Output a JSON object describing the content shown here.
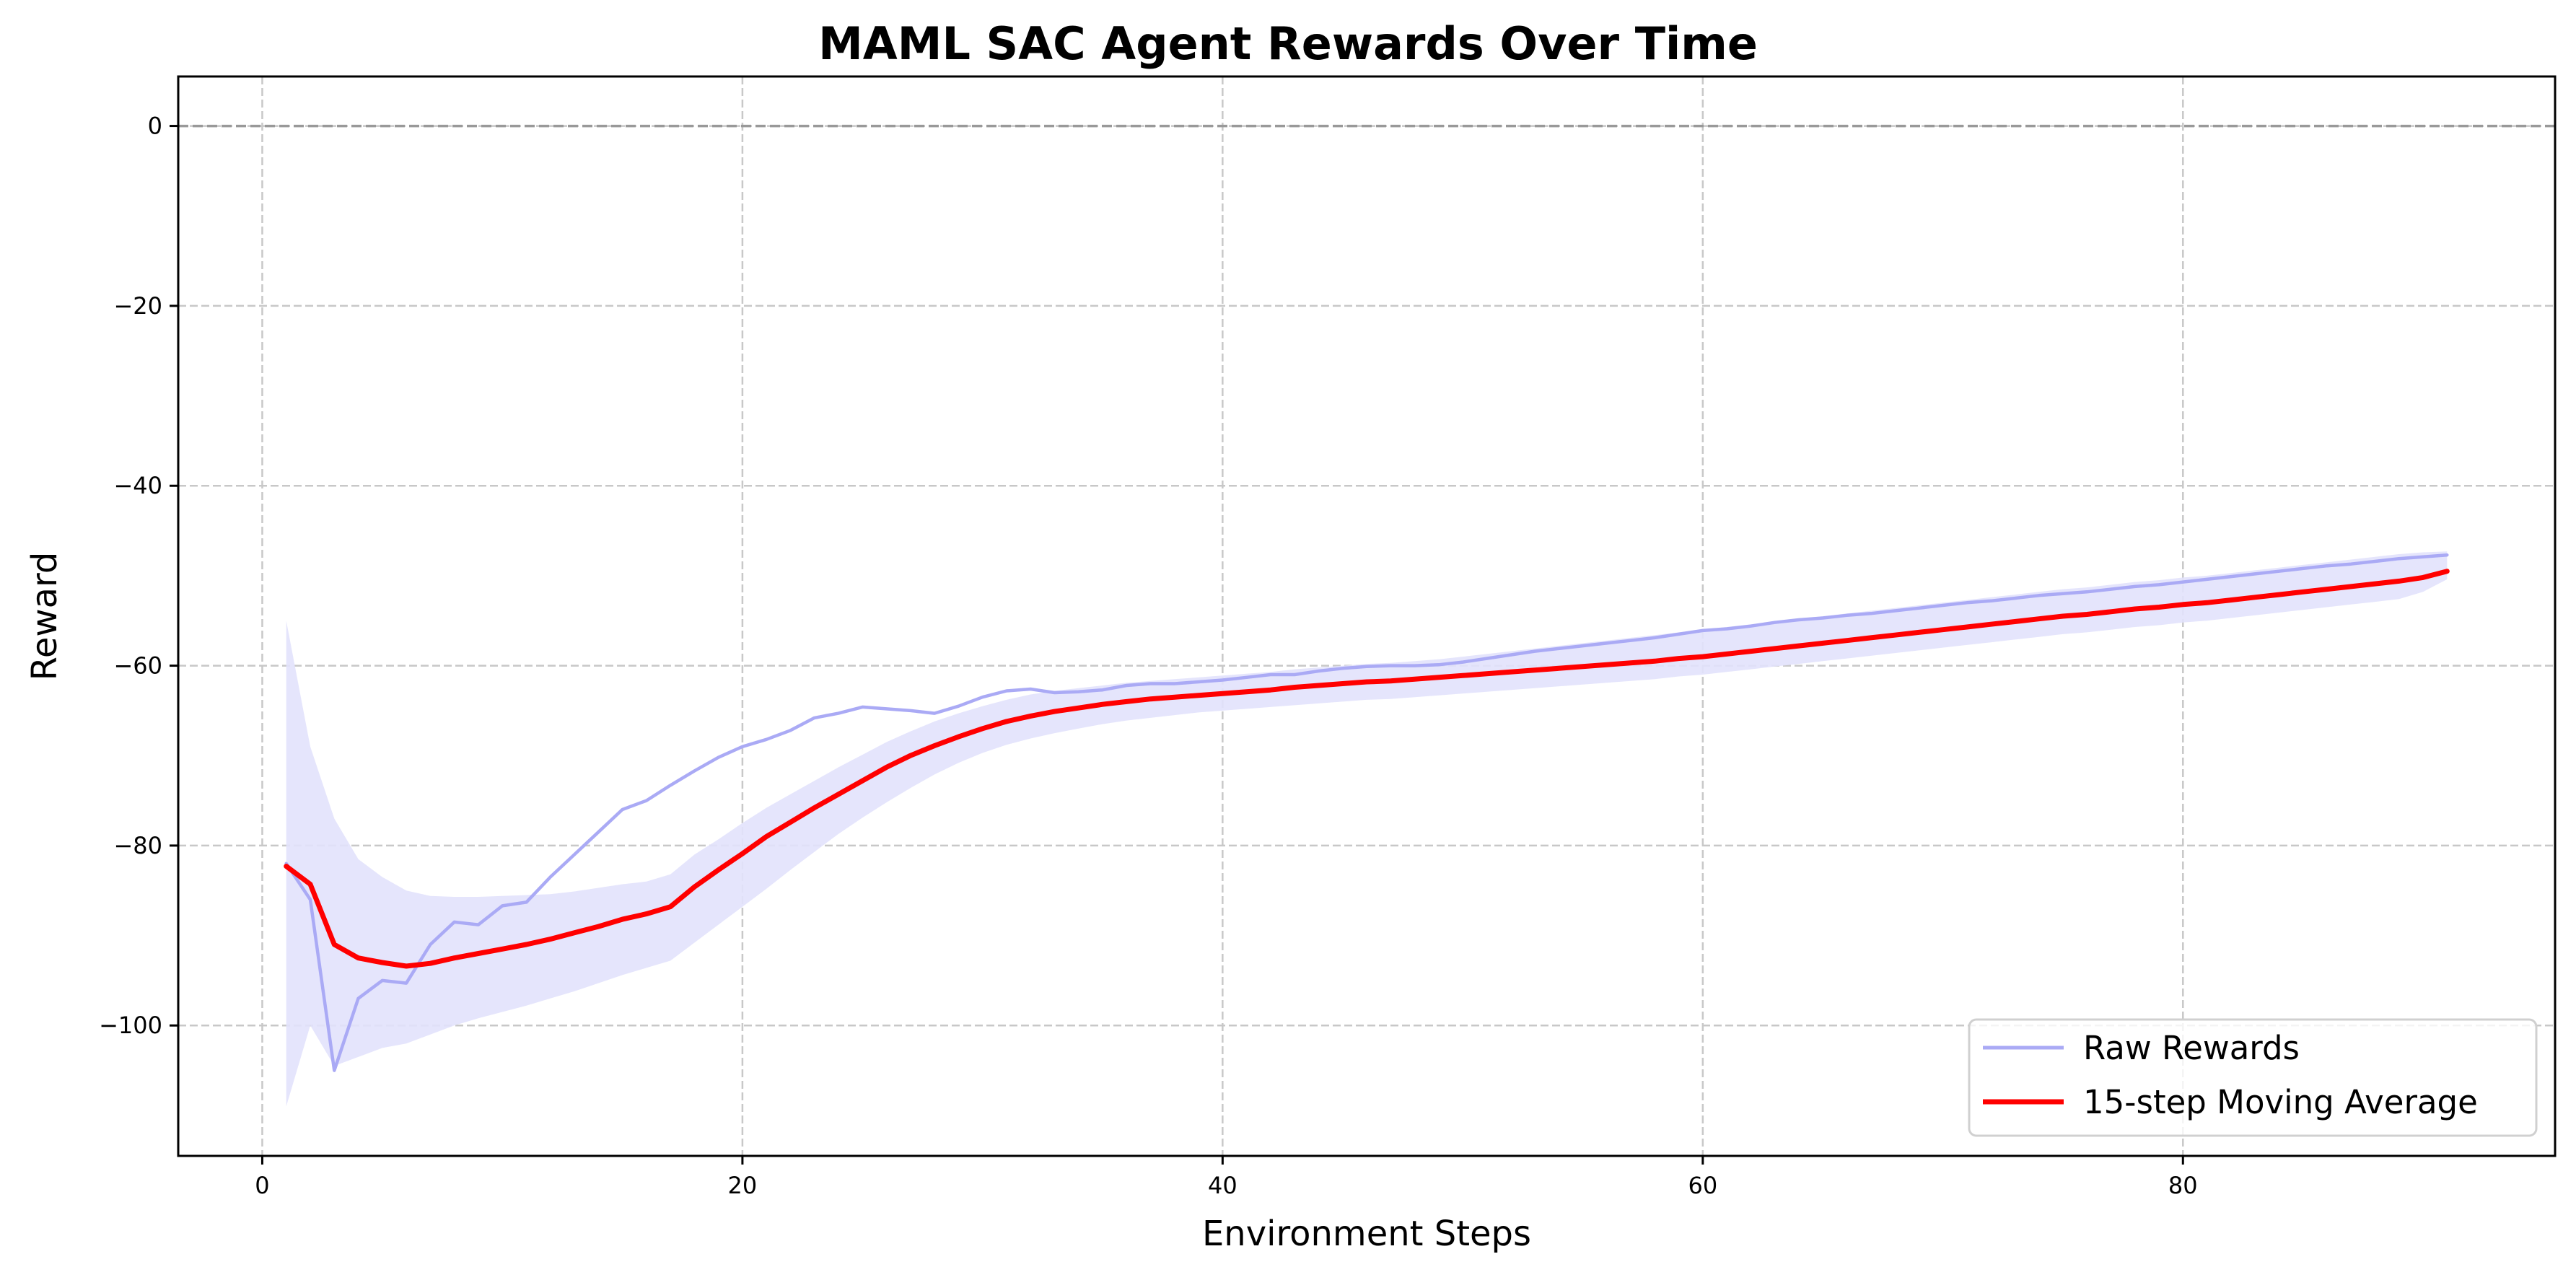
{
  "chart_data": {
    "type": "line",
    "title": "MAML SAC Agent Rewards Over Time",
    "xlabel": "Environment Steps",
    "ylabel": "Reward",
    "xlim": [
      -3.5,
      95.5
    ],
    "ylim": [
      -114.5,
      5.5
    ],
    "xticks": [
      0,
      20,
      40,
      60,
      80
    ],
    "yticks": [
      0,
      -20,
      -40,
      -60,
      -80,
      -100
    ],
    "xtick_labels": [
      "0",
      "20",
      "40",
      "60",
      "80"
    ],
    "ytick_labels": [
      "0",
      "−20",
      "−40",
      "−60",
      "−80",
      "−100"
    ],
    "grid": true,
    "reference_line_y": 0,
    "legend_position": "lower-right",
    "colors": {
      "raw": "#aaaaf5",
      "band": "#e2e2fc",
      "average": "#ff0000",
      "grid": "#c8c8c8",
      "reference": "#999999"
    },
    "series": [
      {
        "name": "Raw Rewards",
        "x": [
          1,
          2,
          3,
          4,
          5,
          6,
          7,
          8,
          9,
          10,
          11,
          12,
          13,
          14,
          15,
          16,
          17,
          18,
          19,
          20,
          21,
          22,
          23,
          24,
          25,
          26,
          27,
          28,
          29,
          30,
          31,
          32,
          33,
          34,
          35,
          36,
          37,
          38,
          39,
          40,
          41,
          42,
          43,
          44,
          45,
          46,
          47,
          48,
          49,
          50,
          51,
          52,
          53,
          54,
          55,
          56,
          57,
          58,
          59,
          60,
          61,
          62,
          63,
          64,
          65,
          66,
          67,
          68,
          69,
          70,
          71,
          72,
          73,
          74,
          75,
          76,
          77,
          78,
          79,
          80,
          81,
          82,
          83,
          84,
          85,
          86,
          87,
          88,
          89,
          90,
          91
        ],
        "values": [
          -82,
          -86,
          -105,
          -97,
          -95,
          -95.3,
          -91,
          -88.5,
          -88.8,
          -86.7,
          -86.3,
          -83.5,
          -81,
          -78.5,
          -76,
          -75,
          -73.3,
          -71.7,
          -70.2,
          -69,
          -68.2,
          -67.2,
          -65.8,
          -65.3,
          -64.6,
          -64.8,
          -65,
          -65.3,
          -64.5,
          -63.5,
          -62.8,
          -62.6,
          -63,
          -62.9,
          -62.7,
          -62.2,
          -62,
          -62,
          -61.8,
          -61.6,
          -61.3,
          -61,
          -61,
          -60.6,
          -60.3,
          -60.1,
          -60,
          -60,
          -59.9,
          -59.6,
          -59.2,
          -58.8,
          -58.4,
          -58.1,
          -57.8,
          -57.5,
          -57.2,
          -56.9,
          -56.5,
          -56.1,
          -55.9,
          -55.6,
          -55.2,
          -54.9,
          -54.7,
          -54.4,
          -54.2,
          -53.9,
          -53.6,
          -53.3,
          -53,
          -52.8,
          -52.5,
          -52.2,
          -52,
          -51.8,
          -51.5,
          -51.2,
          -51,
          -50.7,
          -50.4,
          -50.1,
          -49.8,
          -49.5,
          -49.2,
          -48.9,
          -48.7,
          -48.4,
          -48.1,
          -47.9,
          -47.7
        ]
      },
      {
        "name": "15-step Moving Average",
        "x": [
          1,
          2,
          3,
          4,
          5,
          6,
          7,
          8,
          9,
          10,
          11,
          12,
          13,
          14,
          15,
          16,
          17,
          18,
          19,
          20,
          21,
          22,
          23,
          24,
          25,
          26,
          27,
          28,
          29,
          30,
          31,
          32,
          33,
          34,
          35,
          36,
          37,
          38,
          39,
          40,
          41,
          42,
          43,
          44,
          45,
          46,
          47,
          48,
          49,
          50,
          51,
          52,
          53,
          54,
          55,
          56,
          57,
          58,
          59,
          60,
          61,
          62,
          63,
          64,
          65,
          66,
          67,
          68,
          69,
          70,
          71,
          72,
          73,
          74,
          75,
          76,
          77,
          78,
          79,
          80,
          81,
          82,
          83,
          84,
          85,
          86,
          87,
          88,
          89,
          90,
          91
        ],
        "values": [
          -82.3,
          -84.3,
          -91,
          -92.5,
          -93,
          -93.4,
          -93.1,
          -92.5,
          -92,
          -91.5,
          -91,
          -90.4,
          -89.7,
          -89,
          -88.2,
          -87.6,
          -86.8,
          -84.6,
          -82.7,
          -80.9,
          -79,
          -77.4,
          -75.8,
          -74.3,
          -72.8,
          -71.3,
          -70,
          -68.9,
          -67.9,
          -67,
          -66.2,
          -65.6,
          -65.1,
          -64.7,
          -64.3,
          -64,
          -63.7,
          -63.5,
          -63.3,
          -63.1,
          -62.9,
          -62.7,
          -62.4,
          -62.2,
          -62,
          -61.8,
          -61.7,
          -61.5,
          -61.3,
          -61.1,
          -60.9,
          -60.7,
          -60.5,
          -60.3,
          -60.1,
          -59.9,
          -59.7,
          -59.5,
          -59.2,
          -59,
          -58.7,
          -58.4,
          -58.1,
          -57.8,
          -57.5,
          -57.2,
          -56.9,
          -56.6,
          -56.3,
          -56,
          -55.7,
          -55.4,
          -55.1,
          -54.8,
          -54.5,
          -54.3,
          -54,
          -53.7,
          -53.5,
          -53.2,
          -53,
          -52.7,
          -52.4,
          -52.1,
          -51.8,
          -51.5,
          -51.2,
          -50.9,
          -50.6,
          -50.2,
          -49.5
        ]
      }
    ],
    "band": {
      "upper": [
        -55,
        -69,
        -77,
        -81.5,
        -83.5,
        -85,
        -85.6,
        -85.7,
        -85.7,
        -85.6,
        -85.5,
        -85.4,
        -85.1,
        -84.7,
        -84.3,
        -84,
        -83.2,
        -81,
        -79.3,
        -77.5,
        -75.8,
        -74.3,
        -72.8,
        -71.3,
        -69.9,
        -68.5,
        -67.3,
        -66.2,
        -65.3,
        -64.5,
        -63.8,
        -63.2,
        -62.8,
        -62.5,
        -62.2,
        -61.9,
        -61.7,
        -61.5,
        -61.3,
        -61.1,
        -60.9,
        -60.7,
        -60.4,
        -60.2,
        -60,
        -59.8,
        -59.7,
        -59.5,
        -59.3,
        -59,
        -58.7,
        -58.4,
        -58.1,
        -57.8,
        -57.5,
        -57.2,
        -56.9,
        -56.6,
        -56.3,
        -56,
        -55.7,
        -55.4,
        -55.1,
        -54.8,
        -54.5,
        -54.2,
        -53.9,
        -53.6,
        -53.3,
        -53,
        -52.7,
        -52.4,
        -52.1,
        -51.8,
        -51.5,
        -51.3,
        -51,
        -50.7,
        -50.5,
        -50.2,
        -50,
        -49.7,
        -49.4,
        -49.1,
        -48.8,
        -48.5,
        -48.2,
        -47.9,
        -47.6,
        -47.4,
        -47.3
      ],
      "lower": [
        -109,
        -100,
        -104.5,
        -103.5,
        -102.5,
        -102,
        -101,
        -100,
        -99.2,
        -98.5,
        -97.8,
        -97,
        -96.2,
        -95.3,
        -94.4,
        -93.6,
        -92.8,
        -90.8,
        -88.8,
        -86.8,
        -84.8,
        -82.7,
        -80.7,
        -78.7,
        -76.9,
        -75.2,
        -73.6,
        -72.1,
        -70.8,
        -69.7,
        -68.8,
        -68.1,
        -67.5,
        -67,
        -66.5,
        -66.1,
        -65.8,
        -65.5,
        -65.2,
        -65,
        -64.8,
        -64.6,
        -64.4,
        -64.2,
        -64,
        -63.8,
        -63.7,
        -63.5,
        -63.3,
        -63.1,
        -62.9,
        -62.7,
        -62.5,
        -62.3,
        -62.1,
        -61.9,
        -61.7,
        -61.5,
        -61.2,
        -61,
        -60.7,
        -60.4,
        -60.1,
        -59.8,
        -59.5,
        -59.2,
        -58.9,
        -58.6,
        -58.3,
        -58,
        -57.7,
        -57.4,
        -57.1,
        -56.8,
        -56.5,
        -56.3,
        -56,
        -55.7,
        -55.5,
        -55.2,
        -55,
        -54.7,
        -54.4,
        -54.1,
        -53.8,
        -53.5,
        -53.2,
        -52.9,
        -52.6,
        -51.8,
        -50.4
      ]
    }
  }
}
